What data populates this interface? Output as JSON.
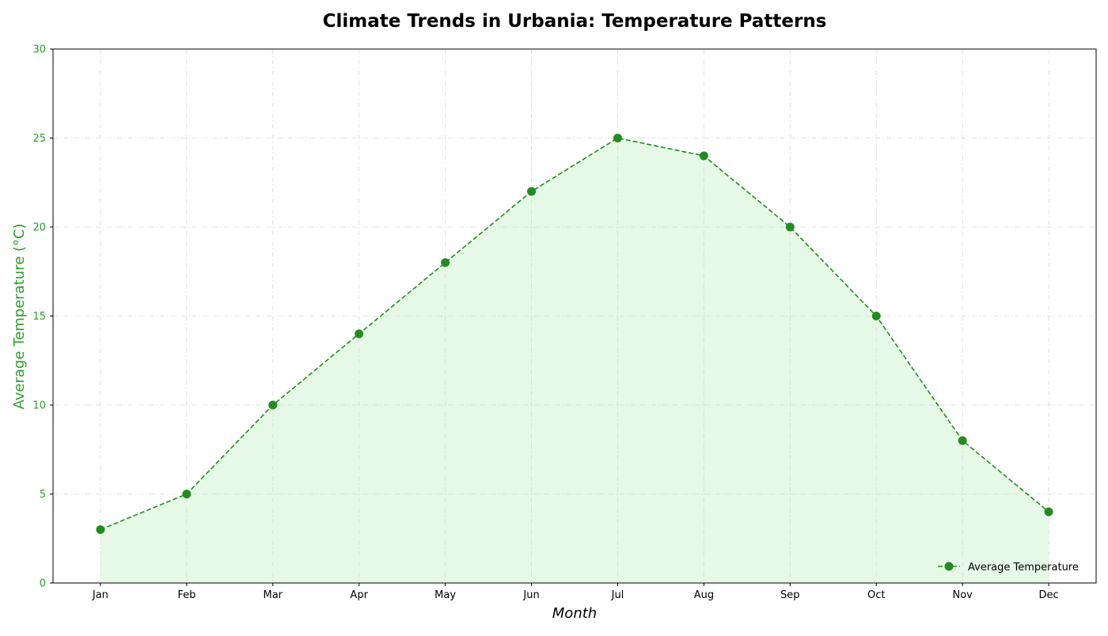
{
  "chart_data": {
    "type": "line",
    "title": "Climate Trends in Urbania: Temperature Patterns",
    "xlabel": "Month",
    "ylabel": "Average Temperature (°C)",
    "categories": [
      "Jan",
      "Feb",
      "Mar",
      "Apr",
      "May",
      "Jun",
      "Jul",
      "Aug",
      "Sep",
      "Oct",
      "Nov",
      "Dec"
    ],
    "series": [
      {
        "name": "Average Temperature",
        "values": [
          3,
          5,
          10,
          14,
          18,
          22,
          25,
          24,
          20,
          15,
          8,
          4
        ]
      }
    ],
    "ylim": [
      0,
      30
    ],
    "yticks": [
      0,
      5,
      10,
      15,
      20,
      25,
      30
    ],
    "grid": true,
    "legend_position": "lower-right",
    "line_style": "dashed",
    "marker": "circle",
    "area_fill": true,
    "colors": {
      "line": "#228B22",
      "fill": "#E6F9E6",
      "ylabel": "#2CA02C",
      "ytick": "#2CA02C",
      "grid": "#D9D9D9"
    }
  }
}
